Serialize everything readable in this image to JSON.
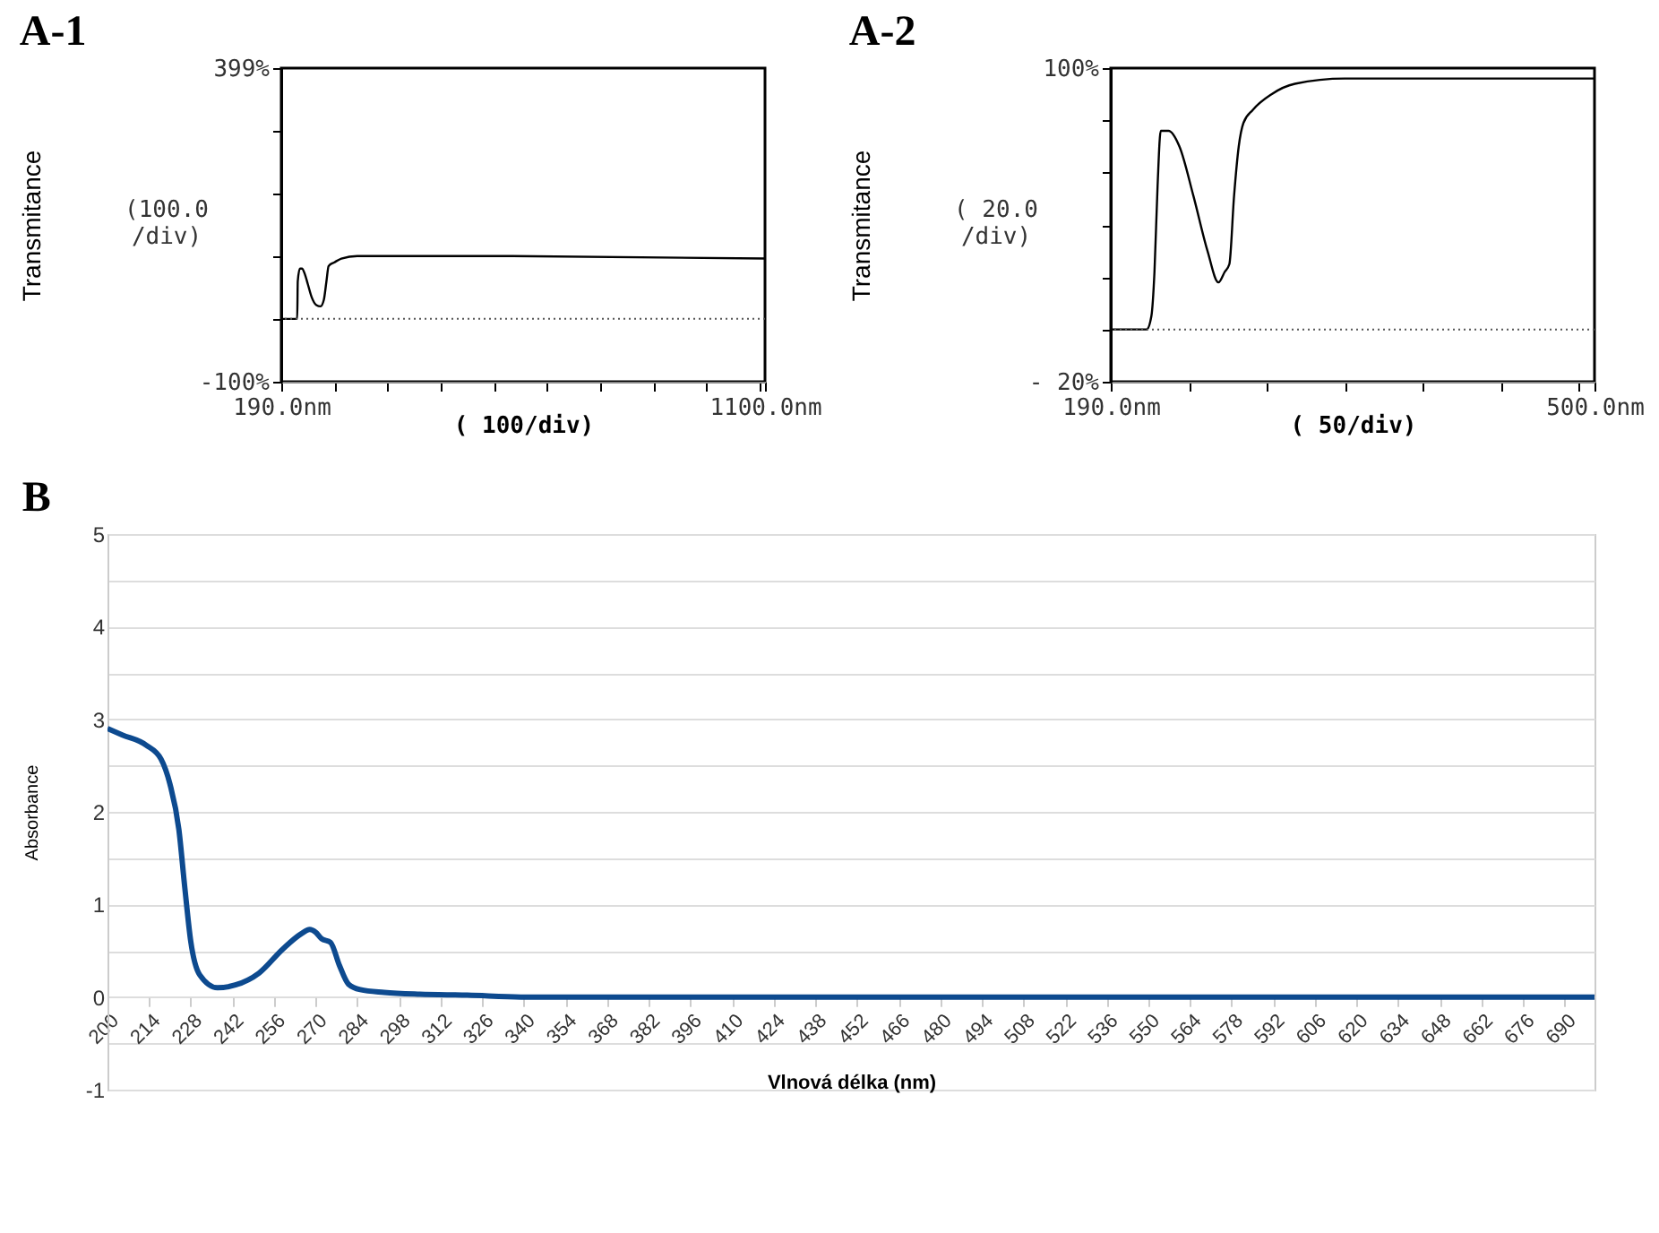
{
  "chart_data": [
    {
      "type": "line",
      "title": "A-1",
      "ylabel": "Transmitance",
      "xlabel": "( 100/div)",
      "annotations": [
        "(100.0\n/div)"
      ],
      "xlim": [
        190,
        1100
      ],
      "xticks": [
        {
          "value": 190,
          "label": "190.0nm"
        },
        {
          "value": 290,
          "label": null
        },
        {
          "value": 390,
          "label": null
        },
        {
          "value": 490,
          "label": null
        },
        {
          "value": 590,
          "label": null
        },
        {
          "value": 690,
          "label": null
        },
        {
          "value": 790,
          "label": null
        },
        {
          "value": 890,
          "label": null
        },
        {
          "value": 990,
          "label": null
        },
        {
          "value": 1090,
          "label": null
        },
        {
          "value": 1100,
          "label": "1100.0nm"
        }
      ],
      "ylim": [
        -100,
        399
      ],
      "yticks": [
        {
          "value": -100,
          "label": "-100%"
        },
        {
          "value": 0,
          "label": null
        },
        {
          "value": 100,
          "label": null
        },
        {
          "value": 200,
          "label": null
        },
        {
          "value": 300,
          "label": null
        },
        {
          "value": 399,
          "label": "399%"
        }
      ],
      "ref_lines": [
        {
          "axis": "y",
          "value": 0,
          "line_style": "dotted"
        }
      ],
      "series": [
        {
          "color": "#000000",
          "x": [
            190,
            220,
            221,
            225,
            229,
            234,
            240,
            247,
            256,
            264,
            270,
            275,
            279,
            290,
            303,
            333,
            600,
            1100
          ],
          "values": [
            0,
            0,
            60,
            80,
            80,
            72,
            55,
            35,
            22,
            20,
            30,
            60,
            84,
            90,
            96,
            100,
            100,
            96
          ]
        }
      ]
    },
    {
      "type": "line",
      "title": "A-2",
      "ylabel": "Transmitance",
      "xlabel": "(  50/div)",
      "annotations": [
        "( 20.0\n/div)"
      ],
      "xlim": [
        190,
        500
      ],
      "xticks": [
        {
          "value": 190,
          "label": "190.0nm"
        },
        {
          "value": 240,
          "label": null
        },
        {
          "value": 290,
          "label": null
        },
        {
          "value": 340,
          "label": null
        },
        {
          "value": 390,
          "label": null
        },
        {
          "value": 440,
          "label": null
        },
        {
          "value": 490,
          "label": null
        },
        {
          "value": 500,
          "label": "500.0nm"
        }
      ],
      "ylim": [
        -20,
        100
      ],
      "yticks": [
        {
          "value": -20,
          "label": "- 20%"
        },
        {
          "value": 0,
          "label": null
        },
        {
          "value": 20,
          "label": null
        },
        {
          "value": 40,
          "label": null
        },
        {
          "value": 60,
          "label": null
        },
        {
          "value": 80,
          "label": null
        },
        {
          "value": 100,
          "label": "100%"
        }
      ],
      "ref_lines": [
        {
          "axis": "y",
          "value": 0,
          "line_style": "dotted"
        }
      ],
      "series": [
        {
          "color": "#000000",
          "x": [
            190,
            213,
            216,
            218,
            220,
            222,
            227,
            234,
            243,
            252,
            259,
            263,
            266,
            269,
            272,
            275,
            281,
            293,
            308,
            340,
            500
          ],
          "values": [
            0,
            0,
            5,
            22,
            55,
            76,
            76,
            70,
            51,
            30,
            18,
            22,
            25,
            51,
            70,
            79,
            84,
            90,
            94,
            96,
            96
          ]
        }
      ]
    },
    {
      "type": "line",
      "title": "B",
      "ylabel": "Absorbance",
      "xlabel": "Vlnová délka (nm)",
      "grid": "y",
      "xlim": [
        200,
        700
      ],
      "xticks": [
        200,
        214,
        228,
        242,
        256,
        270,
        284,
        298,
        312,
        326,
        340,
        354,
        368,
        382,
        396,
        410,
        424,
        438,
        452,
        466,
        480,
        494,
        508,
        522,
        536,
        550,
        564,
        578,
        592,
        606,
        620,
        634,
        648,
        662,
        676,
        690
      ],
      "ylim": [
        -1,
        5
      ],
      "yticks": [
        -1,
        {
          "value": -0.5,
          "label": null
        },
        0,
        {
          "value": 0.5,
          "label": null
        },
        1,
        {
          "value": 1.5,
          "label": null
        },
        2,
        {
          "value": 2.5,
          "label": null
        },
        3,
        {
          "value": 3.5,
          "label": null
        },
        4,
        {
          "value": 4.5,
          "label": null
        },
        5
      ],
      "series": [
        {
          "color": "#0d4a8f",
          "x": [
            200,
            205,
            213,
            218,
            221,
            224,
            226,
            228,
            231,
            237,
            243,
            251,
            259,
            265,
            268,
            270,
            272,
            275,
            278,
            281,
            285,
            293,
            305,
            321,
            339,
            700
          ],
          "values": [
            2.9,
            2.83,
            2.72,
            2.57,
            2.3,
            1.81,
            1.18,
            0.6,
            0.24,
            0.1,
            0.13,
            0.26,
            0.52,
            0.68,
            0.73,
            0.7,
            0.63,
            0.59,
            0.34,
            0.14,
            0.08,
            0.05,
            0.03,
            0.02,
            0,
            0
          ]
        }
      ]
    }
  ]
}
